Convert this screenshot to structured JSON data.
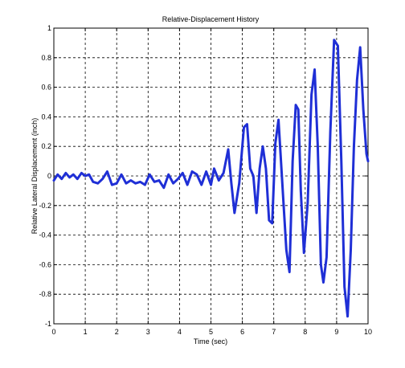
{
  "chart_data": {
    "type": "line",
    "title": "Relative-Displacement History",
    "xlabel": "Time (sec)",
    "ylabel": "Relative Lateral Displacement (inch)",
    "xlim": [
      0,
      10
    ],
    "ylim": [
      -1,
      1
    ],
    "xticks": [
      "0",
      "1",
      "2",
      "3",
      "4",
      "5",
      "6",
      "7",
      "8",
      "9",
      "10"
    ],
    "yticks": [
      "1",
      "0.8",
      "0.6",
      "0.4",
      "0.2",
      "0",
      "-0.2",
      "-0.4",
      "-0.6",
      "-0.8",
      "-1"
    ],
    "grid": true,
    "series_color": "#1f2fd6",
    "series": [
      {
        "x": [
          0,
          0.12,
          0.25,
          0.38,
          0.5,
          0.62,
          0.75,
          0.88,
          1.0,
          1.12,
          1.25,
          1.4,
          1.55,
          1.7,
          1.85,
          2.0,
          2.15,
          2.3,
          2.45,
          2.6,
          2.75,
          2.9,
          3.05,
          3.2,
          3.35,
          3.5,
          3.65,
          3.8,
          3.95,
          4.1,
          4.25,
          4.4,
          4.55,
          4.7,
          4.85,
          5.0,
          5.1,
          5.25,
          5.4,
          5.55,
          5.65,
          5.75,
          5.9,
          6.05,
          6.15,
          6.25,
          6.35,
          6.45,
          6.55,
          6.65,
          6.75,
          6.85,
          6.95,
          7.05,
          7.15,
          7.3,
          7.4,
          7.5,
          7.6,
          7.7,
          7.78,
          7.86,
          7.96,
          8.08,
          8.2,
          8.3,
          8.4,
          8.5,
          8.58,
          8.68,
          8.8,
          8.92,
          9.04,
          9.15,
          9.25,
          9.35,
          9.45,
          9.55,
          9.65,
          9.75,
          9.85,
          9.95,
          10.0
        ],
        "y": [
          -0.03,
          0.01,
          -0.02,
          0.02,
          -0.01,
          0.01,
          -0.02,
          0.02,
          0.0,
          0.01,
          -0.04,
          -0.05,
          -0.02,
          0.03,
          -0.06,
          -0.05,
          0.01,
          -0.05,
          -0.03,
          -0.05,
          -0.04,
          -0.06,
          0.01,
          -0.04,
          -0.03,
          -0.08,
          0.01,
          -0.05,
          -0.02,
          0.02,
          -0.06,
          0.03,
          0.01,
          -0.06,
          0.03,
          -0.06,
          0.05,
          -0.03,
          0.02,
          0.18,
          -0.05,
          -0.25,
          -0.05,
          0.33,
          0.35,
          0.05,
          0.0,
          -0.25,
          0.05,
          0.2,
          0.05,
          -0.3,
          -0.32,
          0.22,
          0.38,
          -0.15,
          -0.5,
          -0.65,
          0.1,
          0.48,
          0.45,
          -0.1,
          -0.52,
          -0.18,
          0.55,
          0.72,
          0.2,
          -0.6,
          -0.72,
          -0.55,
          0.3,
          0.92,
          0.88,
          0.1,
          -0.75,
          -0.95,
          -0.5,
          0.2,
          0.65,
          0.87,
          0.45,
          0.15,
          0.1
        ]
      }
    ]
  }
}
